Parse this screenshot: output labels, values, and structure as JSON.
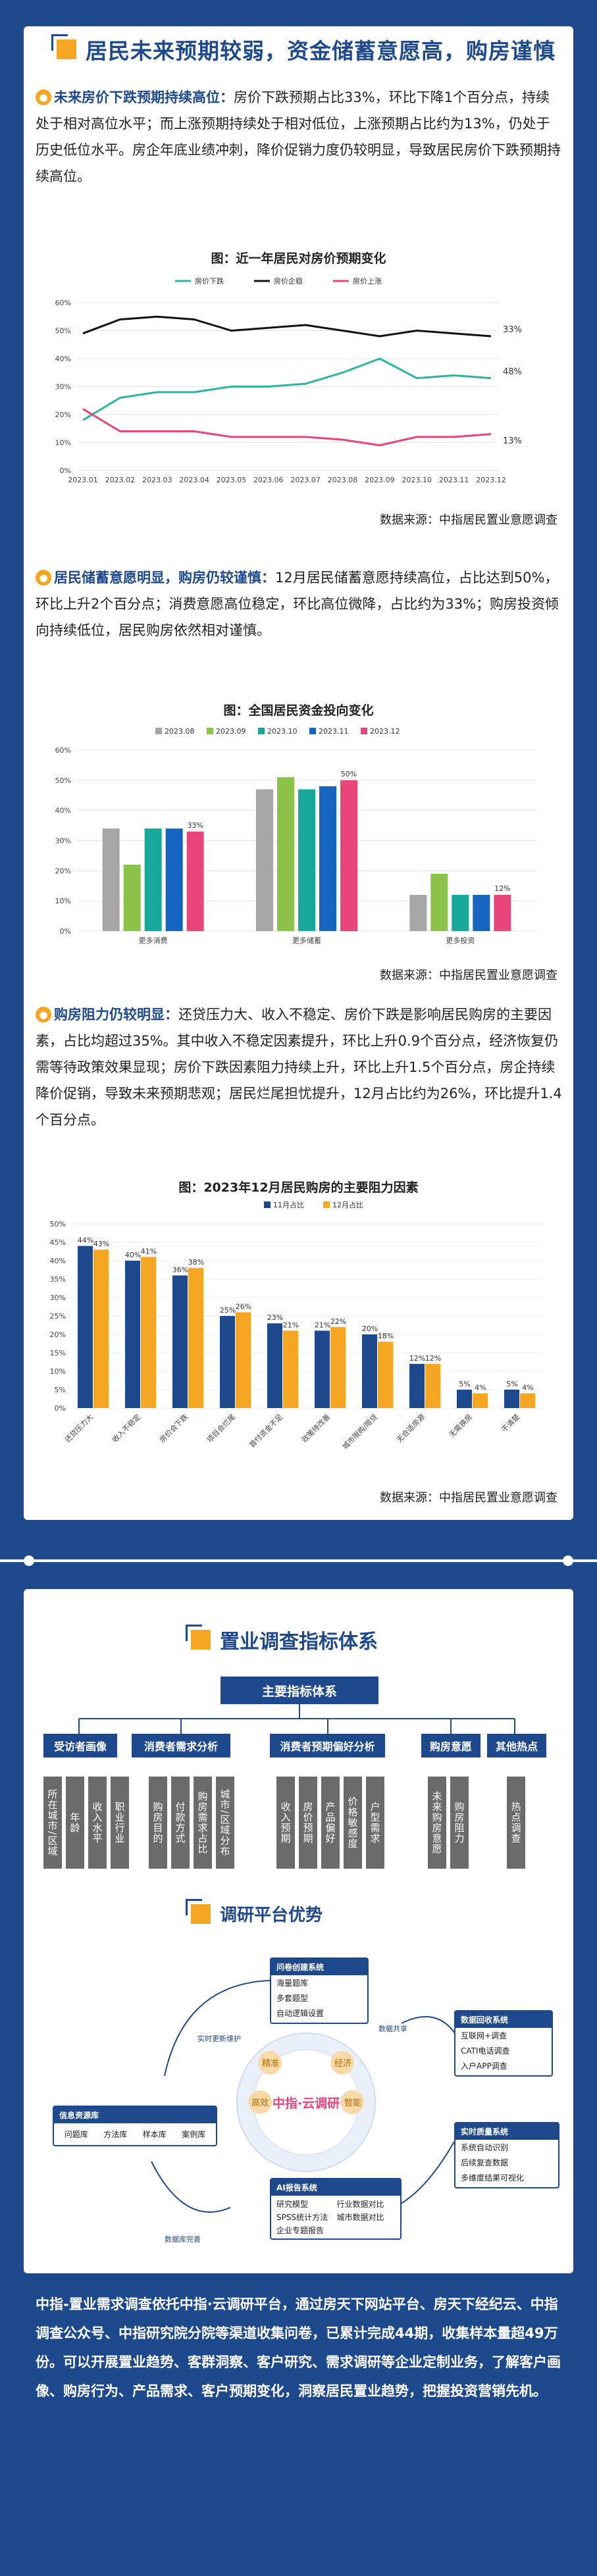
{
  "section1": {
    "title": "居民未来预期较弱，资金储蓄意愿高，购房谨慎",
    "para1_lead": "未来房价下跌预期持续高位：",
    "para1_body": "房价下跌预期占比33%，环比下降1个百分点，持续处于相对高位水平；而上涨预期持续处于相对低位，上涨预期占比约为13%，仍处于历史低位水平。房企年底业绩冲刺，降价促销力度仍较明显，导致居民房价下跌预期持续高位。",
    "chart1": {
      "title": "图：近一年居民对房价预期变化",
      "source": "数据来源：中指居民置业意愿调查"
    },
    "para2_lead": "居民储蓄意愿明显，购房仍较谨慎：",
    "para2_body": "12月居民储蓄意愿持续高位，占比达到50%，环比上升2个百分点；消费意愿高位稳定，环比高位微降，占比约为33%；购房投资倾向持续低位，居民购房依然相对谨慎。",
    "chart2": {
      "title": "图：全国居民资金投向变化",
      "source": "数据来源：中指居民置业意愿调查"
    },
    "para3_lead": "购房阻力仍较明显：",
    "para3_body": "还贷压力大、收入不稳定、房价下跌是影响居民购房的主要因素，占比均超过35%。其中收入不稳定因素提升，环比上升0.9个百分点，经济恢复仍需等待政策效果显现；房价下跌因素阻力持续上升，环比上升1.5个百分点，房企持续降价促销，导致未来预期悲观；居民烂尾担忧提升，12月占比约为26%，环比提升1.4个百分点。",
    "chart3": {
      "title": "图：2023年12月居民购房的主要阻力因素",
      "source": "数据来源：中指居民置业意愿调查"
    }
  },
  "section2": {
    "title": "置业调查指标体系",
    "main_box": "主要指标体系",
    "categories": [
      {
        "label": "受访者画像",
        "leaves": [
          "所在城市/区域",
          "年龄",
          "收入水平",
          "职业行业"
        ]
      },
      {
        "label": "消费者需求分析",
        "leaves": [
          "购房目的",
          "付款方式",
          "购房需求占比",
          "城市/区域分布"
        ]
      },
      {
        "label": "消费者预期偏好分析",
        "leaves": [
          "收入预期",
          "房价预期",
          "产品偏好",
          "价格敏感度",
          "户型需求"
        ]
      },
      {
        "label": "购房意愿",
        "leaves": [
          "未来购房意愿",
          "购房阻力"
        ]
      },
      {
        "label": "其他热点",
        "leaves": [
          "热点调查"
        ]
      }
    ],
    "platform_title": "调研平台优势",
    "platform": {
      "center_brand": "中指·云调研",
      "questionnaire_title": "问卷创建系统",
      "questionnaire_items": [
        "海量题库",
        "多套题型",
        "自动逻辑设置"
      ],
      "collection_title": "数据回收系统",
      "collection_items": [
        "互联网+调查",
        "CATI电话调查",
        "入户APP调查"
      ],
      "resource_title": "信息资源库",
      "resource_items": [
        "问题库",
        "方法库",
        "样本库",
        "案例库"
      ],
      "monitor_title": "实时质量系统",
      "monitor_items": [
        "系统自动识别",
        "后续复查数据",
        "多维度结果可视化"
      ],
      "report_title": "AI报告系统",
      "report_items": [
        "研究模型",
        "行业数据对比",
        "SPSS统计方法",
        "城市数据对比",
        "企业专题报告"
      ],
      "labels": [
        "精准",
        "经济",
        "高效",
        "智能"
      ],
      "flow_labels": [
        "实时更新维护",
        "数据共享",
        "数据库完善"
      ]
    },
    "bottom_text": "中指-置业需求调查依托中指·云调研平台，通过房天下网站平台、房天下经纪云、中指调查公众号、中指研究院分院等渠道收集问卷，已累计完成44期，收集样本量超49万份。可以开展置业趋势、客群洞察、客户研究、需求调研等企业定制业务，了解客户画像、购房行为、产品需求、客户预期变化，洞察居民置业趋势，把握投资营销先机。"
  },
  "chart_data": [
    {
      "type": "line",
      "title": "图：近一年居民对房价预期变化",
      "x": [
        "2023.01",
        "2023.02",
        "2023.03",
        "2023.04",
        "2023.05",
        "2023.06",
        "2023.07",
        "2023.08",
        "2023.09",
        "2023.10",
        "2023.11",
        "2023.12"
      ],
      "series": [
        {
          "name": "房价下跌",
          "values": [
            18,
            26,
            28,
            28,
            30,
            30,
            31,
            35,
            40,
            33,
            34,
            33
          ]
        },
        {
          "name": "房价企稳",
          "values": [
            49,
            54,
            55,
            54,
            50,
            51,
            52,
            50,
            48,
            50,
            49,
            48
          ]
        },
        {
          "name": "房价上涨",
          "values": [
            22,
            14,
            14,
            14,
            12,
            12,
            12,
            11,
            9,
            12,
            12,
            13
          ]
        }
      ],
      "end_labels": [
        "48%",
        "33%",
        "13%"
      ],
      "ylim": [
        0,
        60
      ],
      "yticks": [
        "0%",
        "10%",
        "20%",
        "30%",
        "40%",
        "50%",
        "60%"
      ],
      "colors": {
        "房价下跌": "#2bb5a0",
        "房价企稳": "#111111",
        "房价上涨": "#e8457a"
      },
      "legend": "top"
    },
    {
      "type": "bar",
      "title": "图：全国居民资金投向变化",
      "categories": [
        "更多消费",
        "更多储蓄",
        "更多投资"
      ],
      "series": [
        {
          "name": "2023.08",
          "values": [
            34,
            47,
            12
          ]
        },
        {
          "name": "2023.09",
          "values": [
            22,
            51,
            19
          ]
        },
        {
          "name": "2023.10",
          "values": [
            34,
            47,
            12
          ]
        },
        {
          "name": "2023.11",
          "values": [
            34,
            48,
            12
          ]
        },
        {
          "name": "2023.12",
          "values": [
            33,
            50,
            12
          ]
        }
      ],
      "data_labels": {
        "更多消费": "33%",
        "更多储蓄": "50%",
        "更多投资": "12%"
      },
      "ylim": [
        0,
        60
      ],
      "yticks": [
        "0%",
        "10%",
        "20%",
        "30%",
        "40%",
        "50%",
        "60%"
      ],
      "colors": [
        "#a6a6a6",
        "#8bc34a",
        "#17a89a",
        "#1565c0",
        "#e8457a"
      ],
      "legend": "top"
    },
    {
      "type": "bar",
      "title": "图：2023年12月居民购房的主要阻力因素",
      "categories": [
        "还贷压力大",
        "收入不稳定",
        "房价会下跌",
        "项目会烂尾",
        "首付资金不足",
        "政策待改善",
        "城市限购/限贷",
        "无合适房源",
        "无需换房",
        "不清楚"
      ],
      "series": [
        {
          "name": "11月占比",
          "values": [
            44,
            40,
            36,
            25,
            23,
            21,
            20,
            12,
            5,
            5
          ]
        },
        {
          "name": "12月占比",
          "values": [
            43,
            41,
            38,
            26,
            21,
            22,
            18,
            12,
            4,
            4
          ]
        }
      ],
      "data_labels": {
        "11月占比": [
          "44%",
          "40%",
          "36%",
          "25%",
          "23%",
          "21%",
          "20%",
          "12%",
          "5%",
          "5%"
        ],
        "12月占比": [
          "43%",
          "41%",
          "38%",
          "26%",
          "21%",
          "22%",
          "18%",
          "12%",
          "4%",
          "4%"
        ]
      },
      "ylim": [
        0,
        50
      ],
      "yticks": [
        "0%",
        "5%",
        "10%",
        "15%",
        "20%",
        "25%",
        "30%",
        "35%",
        "40%",
        "45%",
        "50%"
      ],
      "colors": {
        "11月占比": "#1e4a8d",
        "12月占比": "#f5a623"
      },
      "legend": "top"
    }
  ]
}
